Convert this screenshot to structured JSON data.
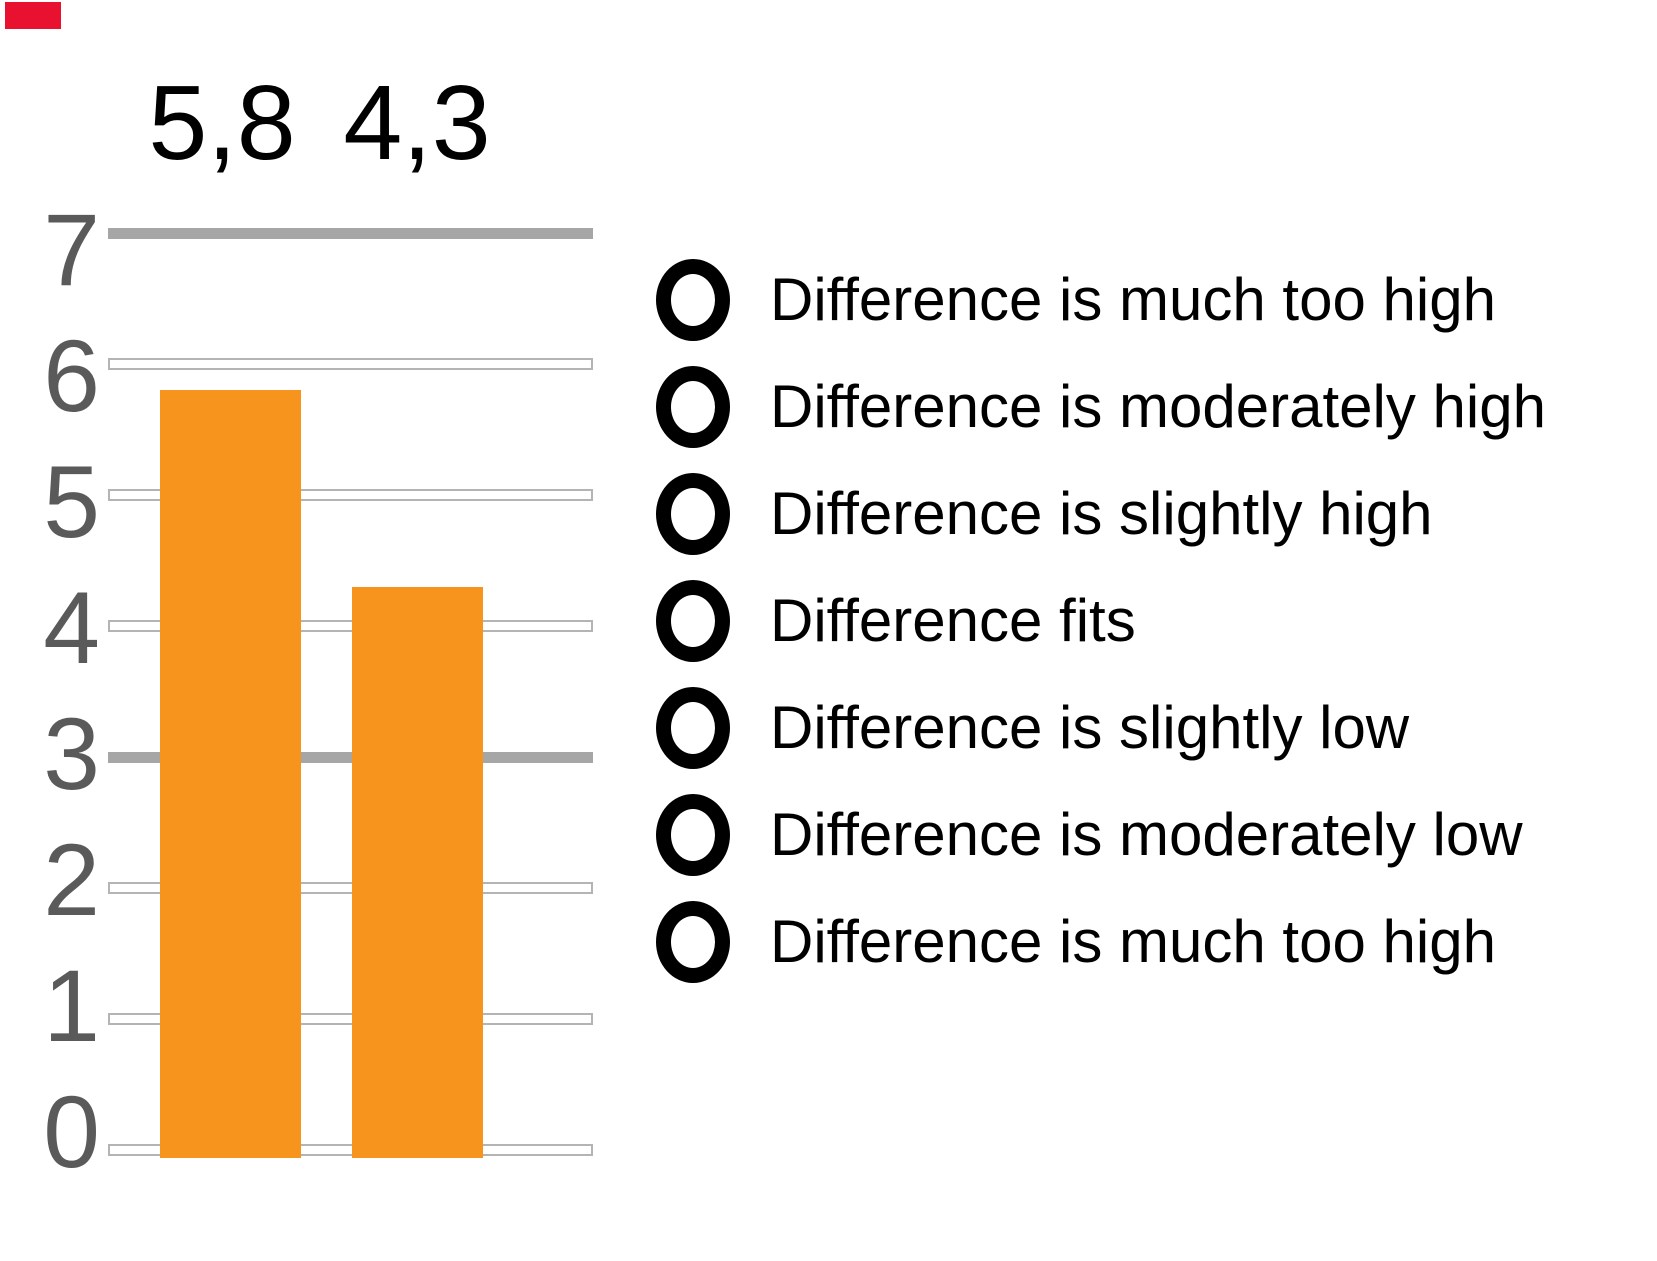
{
  "marker": {
    "color": "#E8112F"
  },
  "chart_data": {
    "type": "bar",
    "title": "",
    "categories": [
      "",
      ""
    ],
    "values": [
      5.8,
      4.3
    ],
    "value_labels": [
      "5,8",
      "4,3"
    ],
    "y_ticks": [
      "7",
      "6",
      "5",
      "4",
      "3",
      "2",
      "1",
      "0"
    ],
    "ylim": [
      0,
      7
    ],
    "xlabel": "",
    "ylabel": "",
    "grid": true,
    "legend": false,
    "bar_color": "#F6941E",
    "value_label_color": "#000000",
    "axis_label_color": "#5A5A5A",
    "solid_gridline_values": [
      7,
      3
    ],
    "gridline_solid_color": "#A6A6A6",
    "gridline_ribbon_border_color": "#B4B4B4",
    "gridline_ribbon_fill": "#FFFFFF"
  },
  "options": {
    "items": [
      {
        "label": "Difference is much too high"
      },
      {
        "label": "Difference is moderately high"
      },
      {
        "label": "Difference is slightly high"
      },
      {
        "label": "Difference fits"
      },
      {
        "label": "Difference is slightly low"
      },
      {
        "label": "Difference is moderately low"
      },
      {
        "label": "Difference is much too high"
      }
    ]
  }
}
